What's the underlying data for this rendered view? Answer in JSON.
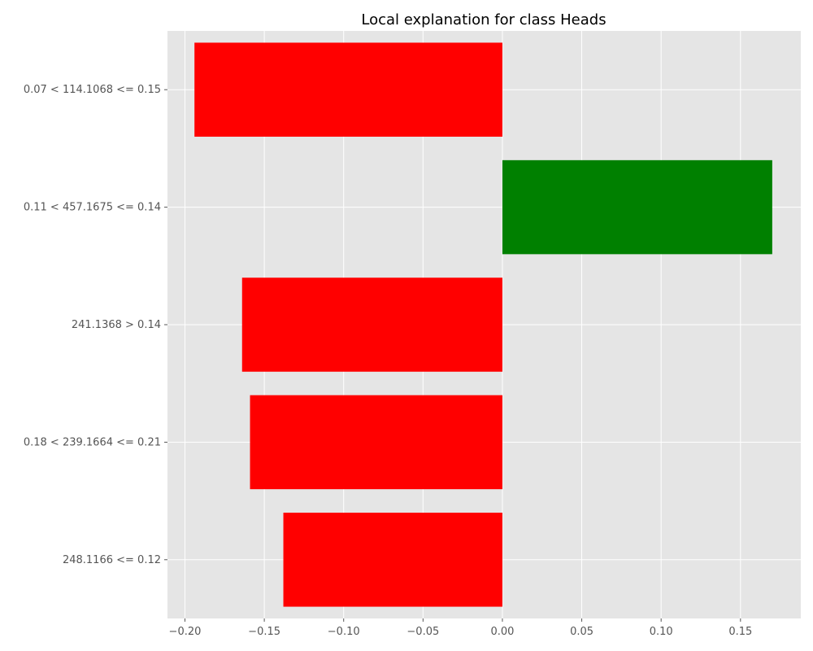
{
  "chart_data": {
    "type": "bar",
    "orientation": "horizontal",
    "title": "Local explanation for class Heads",
    "xlabel": "",
    "ylabel": "",
    "categories": [
      "0.07 < 114.1068 <= 0.15",
      "0.11 < 457.1675 <= 0.14",
      "241.1368 > 0.14",
      "0.18 < 239.1664 <= 0.21",
      "248.1166 <= 0.12"
    ],
    "values": [
      -0.194,
      0.17,
      -0.164,
      -0.159,
      -0.138
    ],
    "bar_colors": [
      "#ff0000",
      "#008000",
      "#ff0000",
      "#ff0000",
      "#ff0000"
    ],
    "xlim": [
      -0.211,
      0.188
    ],
    "xticks": [
      -0.2,
      -0.15,
      -0.1,
      -0.05,
      0.0,
      0.05,
      0.1,
      0.15
    ],
    "xtick_labels": [
      "−0.20",
      "−0.15",
      "−0.10",
      "−0.05",
      "0.00",
      "0.05",
      "0.10",
      "0.15"
    ],
    "grid": true,
    "background_color": "#e5e5e5",
    "negative_color": "#ff0000",
    "positive_color": "#008000"
  }
}
